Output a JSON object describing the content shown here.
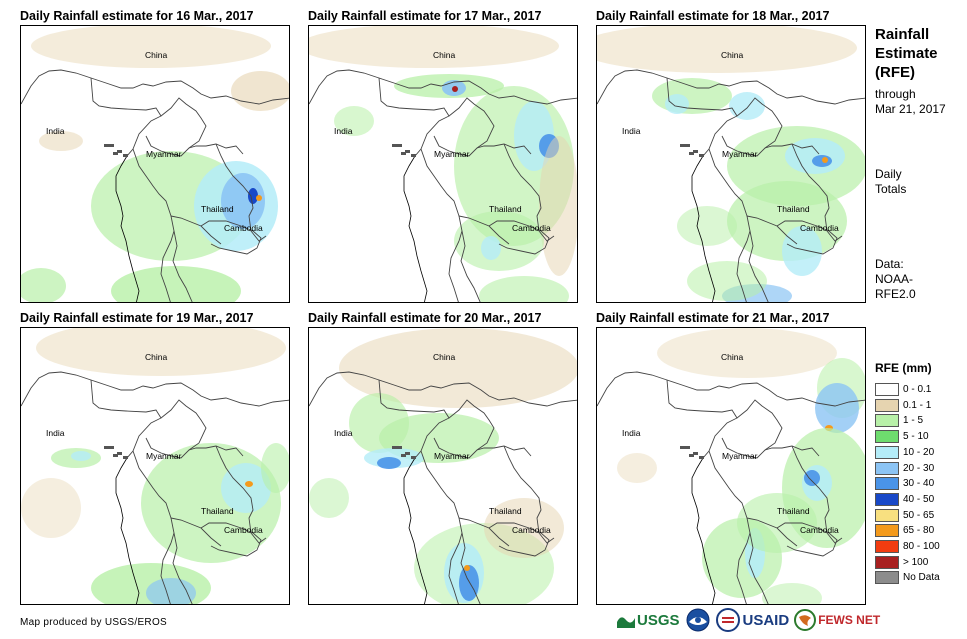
{
  "panels": [
    {
      "title": "Daily Rainfall estimate for 16 Mar., 2017"
    },
    {
      "title": "Daily Rainfall estimate for 17 Mar., 2017"
    },
    {
      "title": "Daily Rainfall estimate for 18 Mar., 2017"
    },
    {
      "title": "Daily Rainfall estimate for 19 Mar., 2017"
    },
    {
      "title": "Daily Rainfall estimate for 20 Mar., 2017"
    },
    {
      "title": "Daily Rainfall estimate for 21 Mar., 2017"
    }
  ],
  "map_labels": {
    "china": "China",
    "india": "India",
    "myanmar": "Myanmar",
    "thailand": "Thailand",
    "cambodia": "Cambodia"
  },
  "sidebar": {
    "title_line1": "Rainfall",
    "title_line2": "Estimate",
    "title_line3": "(RFE)",
    "through": "through",
    "through_date": "Mar 21, 2017",
    "daily": "Daily",
    "totals": "Totals",
    "data_label": "Data:",
    "data_source1": "NOAA-",
    "data_source2": "RFE2.0"
  },
  "legend": {
    "title": "RFE (mm)",
    "items": [
      {
        "label": "0 - 0.1",
        "color": "#ffffff"
      },
      {
        "label": "0.1 - 1",
        "color": "#e6d4b0"
      },
      {
        "label": "1 - 5",
        "color": "#b8f0a8"
      },
      {
        "label": "5 - 10",
        "color": "#6edc6e"
      },
      {
        "label": "10 - 20",
        "color": "#b4ecf8"
      },
      {
        "label": "20 - 30",
        "color": "#8cc4f4"
      },
      {
        "label": "30 - 40",
        "color": "#4a94e8"
      },
      {
        "label": "40 - 50",
        "color": "#1848c8"
      },
      {
        "label": "50 - 65",
        "color": "#f8e080"
      },
      {
        "label": "65 - 80",
        "color": "#f49a1c"
      },
      {
        "label": "80 - 100",
        "color": "#f23c10"
      },
      {
        "label": "> 100",
        "color": "#a82020"
      },
      {
        "label": "No Data",
        "color": "#8c8c8c"
      }
    ]
  },
  "credit": "Map produced by USGS/EROS",
  "logos": {
    "usgs": "USGS",
    "usaid": "USAID",
    "fewsnet": "FEWS NET"
  }
}
